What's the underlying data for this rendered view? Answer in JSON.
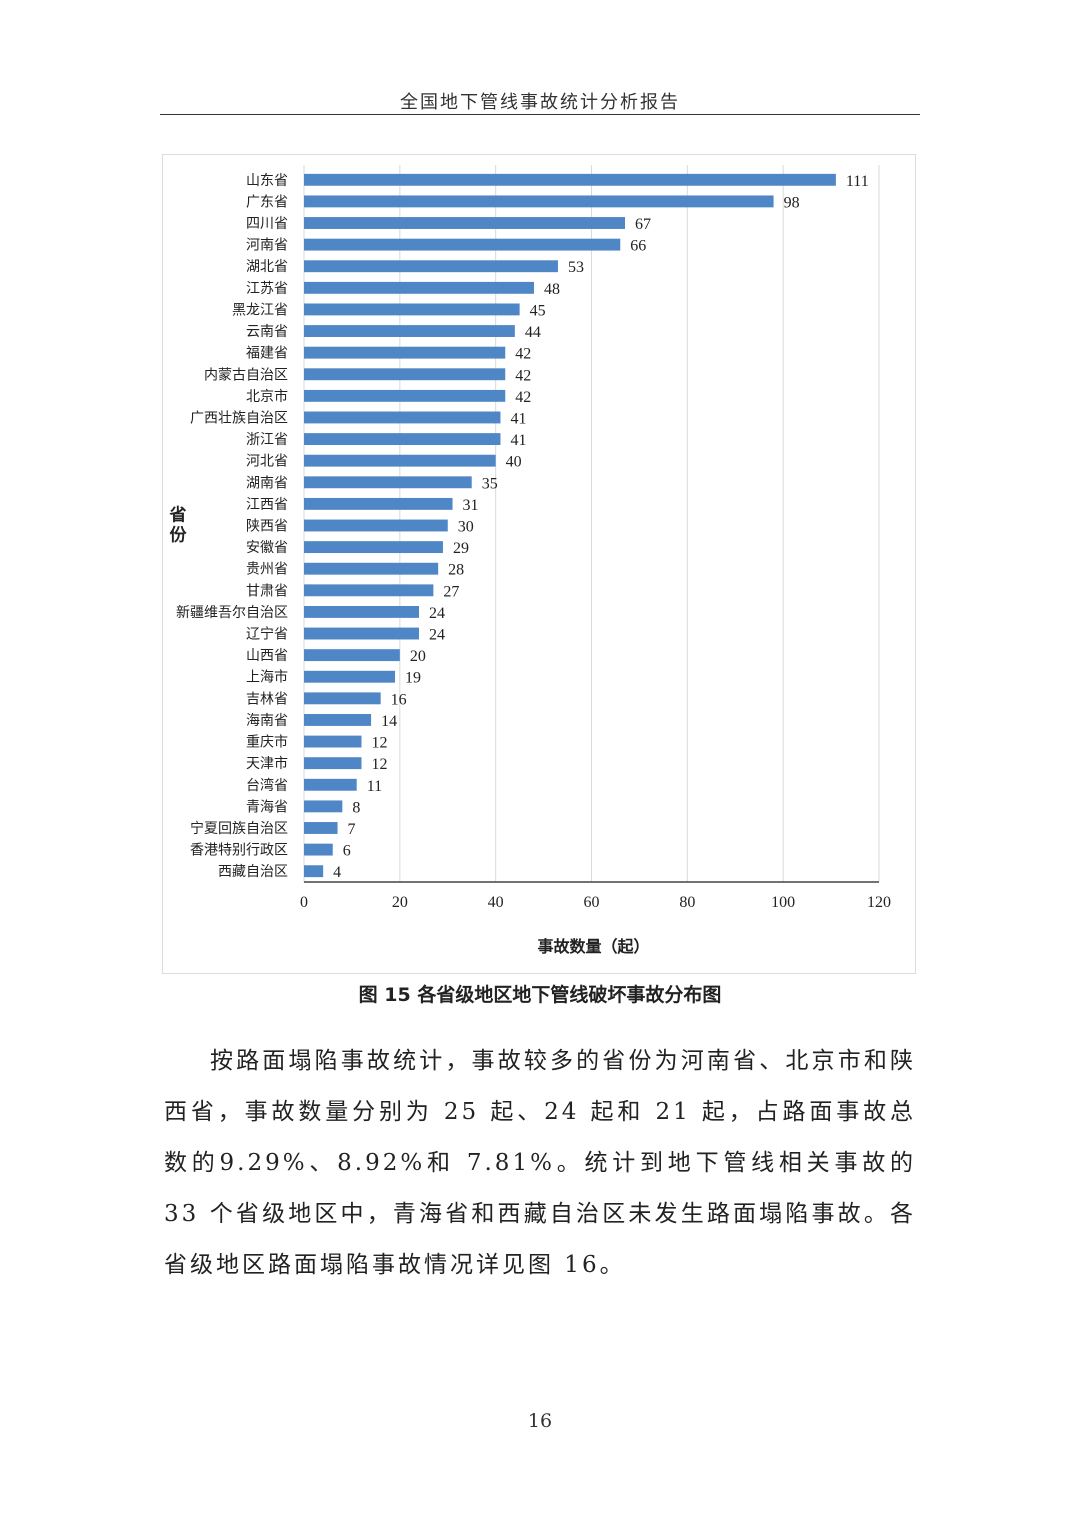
{
  "header": {
    "title": "全国地下管线事故统计分析报告"
  },
  "chart_data": {
    "type": "bar",
    "orientation": "horizontal",
    "categories": [
      "山东省",
      "广东省",
      "四川省",
      "河南省",
      "湖北省",
      "江苏省",
      "黑龙江省",
      "云南省",
      "福建省",
      "内蒙古自治区",
      "北京市",
      "广西壮族自治区",
      "浙江省",
      "河北省",
      "湖南省",
      "江西省",
      "陕西省",
      "安徽省",
      "贵州省",
      "甘肃省",
      "新疆维吾尔自治区",
      "辽宁省",
      "山西省",
      "上海市",
      "吉林省",
      "海南省",
      "重庆市",
      "天津市",
      "台湾省",
      "青海省",
      "宁夏回族自治区",
      "香港特别行政区",
      "西藏自治区"
    ],
    "values": [
      111,
      98,
      67,
      66,
      53,
      48,
      45,
      44,
      42,
      42,
      42,
      41,
      41,
      40,
      35,
      31,
      30,
      29,
      28,
      27,
      24,
      24,
      20,
      19,
      16,
      14,
      12,
      12,
      11,
      8,
      7,
      6,
      4
    ],
    "xlabel": "事故数量（起）",
    "ylabel": "省份",
    "xlim": [
      0,
      120
    ],
    "xticks": [
      0,
      20,
      40,
      60,
      80,
      100,
      120
    ],
    "grid": true,
    "data_labels": true,
    "bar_color": "#4f86c6"
  },
  "caption": "图 15 各省级地区地下管线破坏事故分布图",
  "paragraph": "按路面塌陷事故统计，事故较多的省份为河南省、北京市和陕西省，事故数量分别为 25 起、24 起和 21 起，占路面事故总数的9.29%、8.92%和 7.81%。统计到地下管线相关事故的 33 个省级地区中，青海省和西藏自治区未发生路面塌陷事故。各省级地区路面塌陷事故情况详见图 16。",
  "page_number": "16"
}
